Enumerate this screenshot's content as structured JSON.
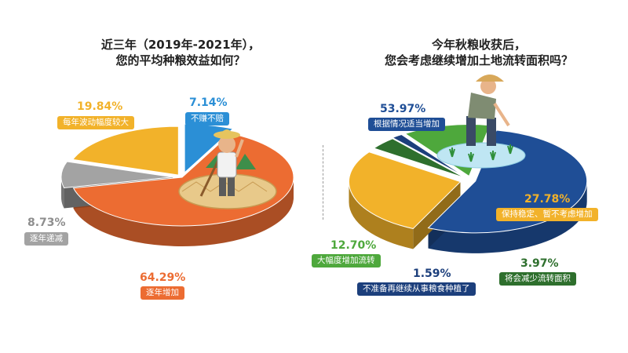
{
  "left_title": [
    "近三年（2019年-2021年），",
    "您的平均种粮效益如何？"
  ],
  "right_title": [
    "今年秋粮收获后，",
    "您会考虑继续增加土地流转面积吗？"
  ],
  "colors": {
    "orange": "#EC6C32",
    "yellow": "#F2B22A",
    "gray": "#A3A3A3",
    "blue": "#2B8FD6",
    "navy": "#1F4E96",
    "green": "#4EA83C",
    "darkgreen": "#2E6F2D",
    "darkblue": "#1C3F7C"
  },
  "chart_data": [
    {
      "type": "pie",
      "title": "近三年（2019年-2021年），您的平均种粮效益如何？",
      "slices": [
        {
          "label": "不赚不赔",
          "value": 7.14,
          "value_text": "7.14%",
          "color": "#2B8FD6"
        },
        {
          "label": "逐年增加",
          "value": 64.29,
          "value_text": "64.29%",
          "color": "#EC6C32"
        },
        {
          "label": "逐年递减",
          "value": 8.73,
          "value_text": "8.73%",
          "color": "#A3A3A3"
        },
        {
          "label": "每年波动幅度较大",
          "value": 19.84,
          "value_text": "19.84%",
          "color": "#F2B22A"
        }
      ]
    },
    {
      "type": "pie",
      "title": "今年秋粮收获后，您会考虑继续增加土地流转面积吗？",
      "slices": [
        {
          "label": "根据情况适当增加",
          "value": 53.97,
          "value_text": "53.97%",
          "color": "#1F4E96"
        },
        {
          "label": "保持稳定、暂不考虑增加",
          "value": 27.78,
          "value_text": "27.78%",
          "color": "#F2B22A"
        },
        {
          "label": "将会减少流转面积",
          "value": 3.97,
          "value_text": "3.97%",
          "color": "#2E6F2D"
        },
        {
          "label": "不准备再继续从事粮食种植了",
          "value": 1.59,
          "value_text": "1.59%",
          "color": "#1C3F7C"
        },
        {
          "label": "大幅度增加流转",
          "value": 12.7,
          "value_text": "12.70%",
          "color": "#4EA83C"
        }
      ]
    }
  ]
}
